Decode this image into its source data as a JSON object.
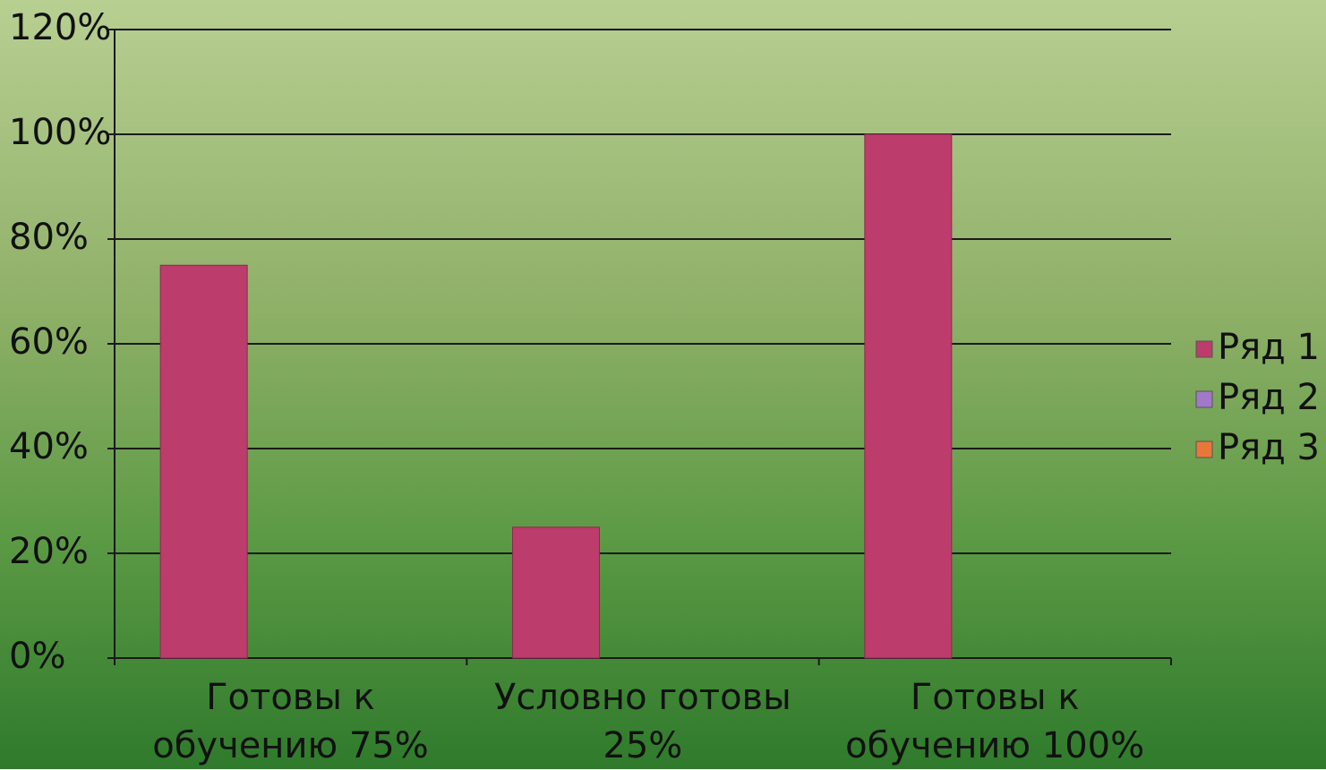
{
  "chart_data": {
    "type": "bar",
    "categories": [
      "Готовы к обучению 75%",
      "Условно готовы 25%",
      "Готовы к обучению 100%"
    ],
    "series": [
      {
        "name": "Ряд 1",
        "color": "#bc3c6b",
        "values": [
          75,
          25,
          100
        ]
      },
      {
        "name": "Ряд 2",
        "color": "#a278c8",
        "values": [
          null,
          null,
          null
        ]
      },
      {
        "name": "Ряд 3",
        "color": "#e8783a",
        "values": [
          null,
          null,
          null
        ]
      }
    ],
    "ylim": [
      0,
      120
    ],
    "yticks": [
      {
        "value": 0,
        "label": "0%"
      },
      {
        "value": 20,
        "label": "20%"
      },
      {
        "value": 40,
        "label": "40%"
      },
      {
        "value": 60,
        "label": "60%"
      },
      {
        "value": 80,
        "label": "80%"
      },
      {
        "value": 100,
        "label": "100%"
      },
      {
        "value": 120,
        "label": "120%"
      }
    ],
    "grid": true,
    "legend": "right"
  }
}
